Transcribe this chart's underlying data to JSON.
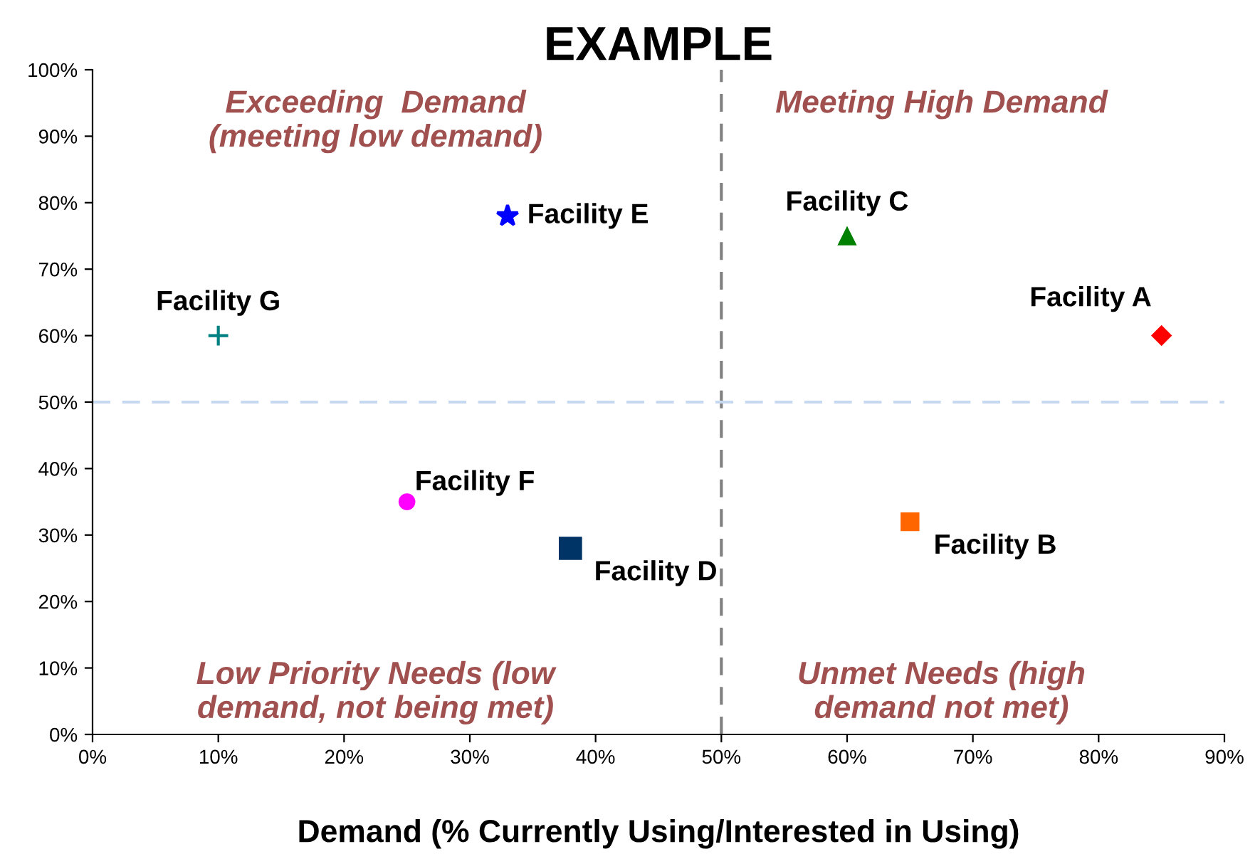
{
  "chart_data": {
    "type": "scatter",
    "title": "EXAMPLE",
    "xlabel": "Demand (% Currently Using/Interested in Using)",
    "xlim": [
      0,
      90
    ],
    "ylim": [
      0,
      100
    ],
    "xticks": [
      {
        "value": 0,
        "label": "0%"
      },
      {
        "value": 10,
        "label": "10%"
      },
      {
        "value": 20,
        "label": "20%"
      },
      {
        "value": 30,
        "label": "30%"
      },
      {
        "value": 40,
        "label": "40%"
      },
      {
        "value": 50,
        "label": "50%"
      },
      {
        "value": 60,
        "label": "60%"
      },
      {
        "value": 70,
        "label": "70%"
      },
      {
        "value": 80,
        "label": "80%"
      },
      {
        "value": 90,
        "label": "90%"
      }
    ],
    "yticks": [
      {
        "value": 0,
        "label": "0%"
      },
      {
        "value": 10,
        "label": "10%"
      },
      {
        "value": 20,
        "label": "20%"
      },
      {
        "value": 30,
        "label": "30%"
      },
      {
        "value": 40,
        "label": "40%"
      },
      {
        "value": 50,
        "label": "50%"
      },
      {
        "value": 60,
        "label": "60%"
      },
      {
        "value": 70,
        "label": "70%"
      },
      {
        "value": 80,
        "label": "80%"
      },
      {
        "value": 90,
        "label": "90%"
      },
      {
        "value": 100,
        "label": "100%"
      }
    ],
    "grid": false,
    "legend": false,
    "series": [
      {
        "name": "Facility A",
        "color": "#ff0000",
        "marker": "diamond",
        "x": [
          85
        ],
        "values": [
          60
        ]
      },
      {
        "name": "Facility B",
        "color": "#ff6600",
        "marker": "square",
        "x": [
          65
        ],
        "values": [
          32
        ]
      },
      {
        "name": "Facility C",
        "color": "#008000",
        "marker": "triangle",
        "x": [
          60
        ],
        "values": [
          75
        ]
      },
      {
        "name": "Facility D",
        "color": "#003366",
        "marker": "square",
        "x": [
          38
        ],
        "values": [
          28
        ]
      },
      {
        "name": "Facility E",
        "color": "#0000ff",
        "marker": "star",
        "x": [
          33
        ],
        "values": [
          78
        ]
      },
      {
        "name": "Facility F",
        "color": "#ff00ff",
        "marker": "circle",
        "x": [
          25
        ],
        "values": [
          35
        ]
      },
      {
        "name": "Facility G",
        "color": "#008080",
        "marker": "cross",
        "x": [
          10
        ],
        "values": [
          60
        ]
      }
    ],
    "ref_lines": [
      {
        "axis": "x",
        "value": 50,
        "color": "#808080",
        "line_style": "dashed"
      },
      {
        "axis": "y",
        "value": 50,
        "color": "#c6d9f1",
        "line_style": "dashed"
      }
    ],
    "annotations": [
      "Exceeding  Demand\n(meeting low demand)",
      "Meeting High Demand",
      "Low Priority Needs (low\ndemand, not being met)",
      "Unmet Needs (high\ndemand not met)"
    ]
  }
}
